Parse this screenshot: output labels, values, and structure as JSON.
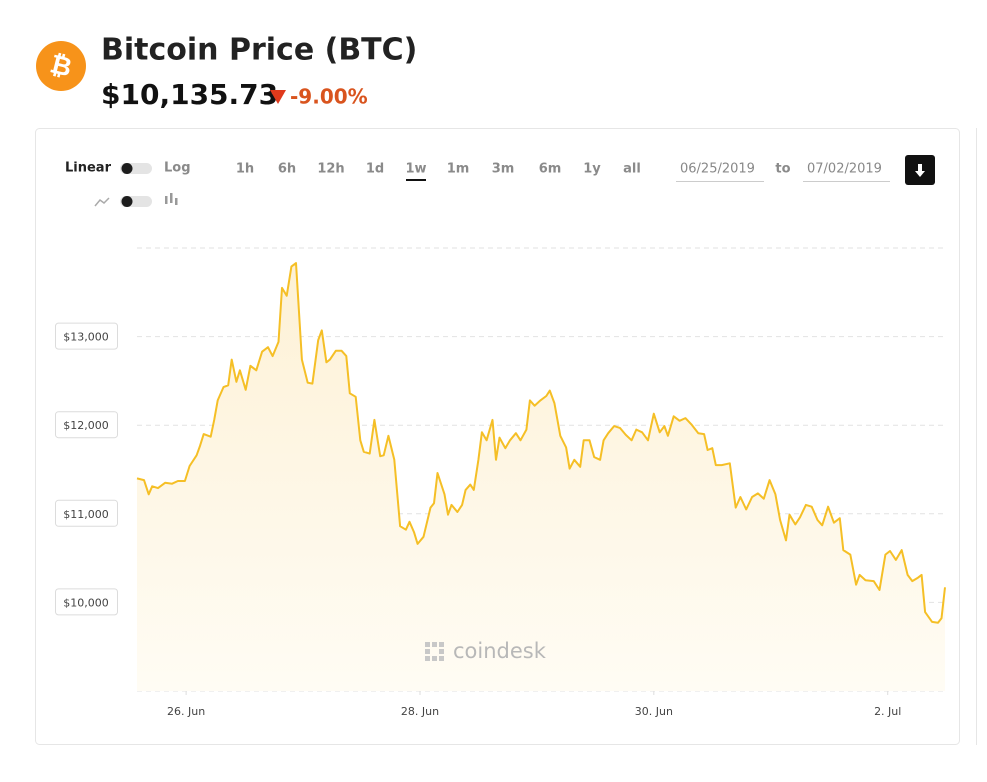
{
  "header": {
    "title": "Bitcoin Price (BTC)",
    "price": "$10,135.73",
    "change": "-9.00%"
  },
  "controls": {
    "scale_left": "Linear",
    "scale_right": "Log",
    "ranges": [
      "1h",
      "6h",
      "12h",
      "1d",
      "1w",
      "1m",
      "3m",
      "6m",
      "1y",
      "all"
    ],
    "selected_range": "1w",
    "date_from": "06/25/2019",
    "date_sep": "to",
    "date_to": "07/02/2019"
  },
  "watermark": "coindesk",
  "chart_data": {
    "type": "line",
    "color": "#f5bf26",
    "grid": true,
    "x": [
      -0.42,
      -0.36,
      -0.32,
      -0.29,
      -0.24,
      -0.18,
      -0.12,
      -0.07,
      -0.01,
      0.03,
      0.09,
      0.12,
      0.15,
      0.21,
      0.24,
      0.27,
      0.32,
      0.36,
      0.39,
      0.43,
      0.46,
      0.51,
      0.55,
      0.6,
      0.65,
      0.7,
      0.74,
      0.79,
      0.82,
      0.86,
      0.9,
      0.94,
      0.99,
      1.04,
      1.08,
      1.13,
      1.16,
      1.2,
      1.23,
      1.28,
      1.33,
      1.37,
      1.4,
      1.45,
      1.49,
      1.52,
      1.57,
      1.61,
      1.66,
      1.69,
      1.73,
      1.78,
      1.83,
      1.88,
      1.91,
      1.95,
      1.98,
      2.03,
      2.09,
      2.12,
      2.15,
      2.21,
      2.24,
      2.27,
      2.32,
      2.36,
      2.39,
      2.43,
      2.46,
      2.5,
      2.53,
      2.57,
      2.62,
      2.65,
      2.68,
      2.73,
      2.77,
      2.82,
      2.86,
      2.91,
      2.94,
      2.98,
      3.03,
      3.08,
      3.11,
      3.15,
      3.2,
      3.25,
      3.28,
      3.32,
      3.37,
      3.4,
      3.45,
      3.49,
      3.54,
      3.57,
      3.61,
      3.66,
      3.71,
      3.76,
      3.81,
      3.85,
      3.9,
      3.95,
      4.0,
      4.05,
      4.09,
      4.12,
      4.17,
      4.22,
      4.27,
      4.32,
      4.38,
      4.43,
      4.46,
      4.5,
      4.53,
      4.58,
      4.65,
      4.7,
      4.74,
      4.79,
      4.84,
      4.89,
      4.94,
      4.99,
      5.04,
      5.08,
      5.13,
      5.16,
      5.21,
      5.25,
      5.3,
      5.35,
      5.4,
      5.44,
      5.49,
      5.54,
      5.59,
      5.62,
      5.68,
      5.73,
      5.76,
      5.81,
      5.88,
      5.93,
      5.98,
      6.02,
      6.07,
      6.12,
      6.17,
      6.21,
      6.26,
      6.29,
      6.32,
      6.38,
      6.43,
      6.46,
      6.49
    ],
    "values": [
      11400,
      11380,
      11220,
      11310,
      11290,
      11350,
      11340,
      11370,
      11370,
      11540,
      11660,
      11770,
      11900,
      11870,
      12060,
      12280,
      12430,
      12450,
      12740,
      12490,
      12620,
      12400,
      12670,
      12620,
      12830,
      12880,
      12780,
      12940,
      13550,
      13460,
      13790,
      13830,
      12740,
      12480,
      12470,
      12960,
      13070,
      12710,
      12740,
      12840,
      12840,
      12780,
      12360,
      12320,
      11830,
      11700,
      11680,
      12060,
      11650,
      11660,
      11880,
      11610,
      10860,
      10820,
      10910,
      10790,
      10660,
      10740,
      11070,
      11120,
      11460,
      11220,
      10990,
      11100,
      11020,
      11100,
      11270,
      11330,
      11270,
      11610,
      11920,
      11830,
      12060,
      11610,
      11860,
      11740,
      11830,
      11910,
      11830,
      11950,
      12280,
      12220,
      12280,
      12330,
      12390,
      12250,
      11880,
      11750,
      11510,
      11610,
      11530,
      11830,
      11830,
      11640,
      11610,
      11830,
      11910,
      11990,
      11970,
      11890,
      11830,
      11950,
      11920,
      11830,
      12130,
      11920,
      11990,
      11880,
      12100,
      12050,
      12080,
      12010,
      11910,
      11900,
      11720,
      11740,
      11550,
      11550,
      11570,
      11070,
      11190,
      11050,
      11190,
      11230,
      11170,
      11380,
      11220,
      10930,
      10700,
      10990,
      10880,
      10960,
      11100,
      11080,
      10930,
      10870,
      11080,
      10900,
      10950,
      10590,
      10540,
      10200,
      10310,
      10250,
      10240,
      10140,
      10540,
      10580,
      10480,
      10590,
      10310,
      10240,
      10280,
      10310,
      9890,
      9780,
      9770,
      9820,
      10170
    ],
    "xlim": [
      -0.42,
      6.49
    ],
    "xticks": [
      {
        "value": 0,
        "label": "26. Jun"
      },
      {
        "value": 2,
        "label": "28. Jun"
      },
      {
        "value": 4,
        "label": "30. Jun"
      },
      {
        "value": 6,
        "label": "2. Jul"
      }
    ],
    "ylim": [
      9000,
      14000
    ],
    "yticks": [
      {
        "value": 10000,
        "label": "$10,000"
      },
      {
        "value": 11000,
        "label": "$11,000"
      },
      {
        "value": 12000,
        "label": "$12,000"
      },
      {
        "value": 13000,
        "label": "$13,000"
      }
    ]
  }
}
